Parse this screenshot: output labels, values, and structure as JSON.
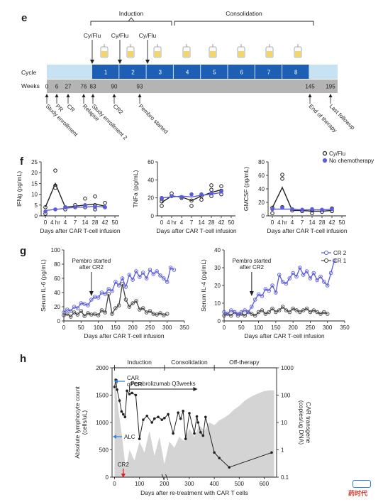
{
  "panel_e": {
    "label": "e",
    "phases": [
      "Induction",
      "Consolidation"
    ],
    "cyflu": [
      "Cy/Flu",
      "Cy/Flu",
      "Cy/Flu"
    ],
    "row_cycle": "Cycle",
    "row_weeks": "Weeks",
    "cycles": [
      "1",
      "2",
      "3",
      "4",
      "5",
      "6",
      "7",
      "8"
    ],
    "weeks": [
      "0",
      "6",
      "27",
      "76",
      "83",
      "90",
      "93",
      "145",
      "195"
    ],
    "events": [
      "Study enrollment",
      "PR",
      "CR",
      "Relapse",
      "Study enrollment 2",
      "CR2",
      "Pembro started",
      "End of therapy",
      "Last followup"
    ],
    "colors": {
      "cycle_bar": "#1d5fb4",
      "cycle_light": "#c7e3f3",
      "weeks_bar": "#b4b4b4"
    }
  },
  "panel_f": {
    "label": "f",
    "xlabel": "Days after CAR T-cell infusion"
  },
  "panel_g": {
    "label": "g",
    "xlabel": "Days after CAR T-cell infusion",
    "annotation": [
      "Pembro started",
      "after CR2"
    ]
  },
  "panel_h": {
    "label": "h",
    "phases": [
      "Induction",
      "Consolidation",
      "Off-therapy"
    ],
    "ylabel_left": [
      "Absolute lymphocyte count",
      "(cells/uL)"
    ],
    "ylabel_right": [
      "CAR transgene",
      "(copies/ug DNA)"
    ],
    "xlabel": "Days after re-treatment with CAR T cells",
    "car_label": [
      "CAR",
      "qPCR"
    ],
    "alc_label": "ALC",
    "cr2_label": "CR2",
    "pembro_label": "Pembrolizumab Q3weeks",
    "colors": {
      "pcr_fill": "#d4d4d4",
      "arrow_blue": "#3a7fd5",
      "arrow_red": "#e02020"
    }
  },
  "watermark": {
    "text": "药时代"
  },
  "chart_data": [
    {
      "type": "line",
      "title": "",
      "xlabel": "Days after CAR T-cell infusion",
      "ylabel": "IFNg (pg/mL)",
      "x_categories": [
        "0",
        "4 hr",
        "4",
        "7",
        "14",
        "28",
        "42",
        "50"
      ],
      "ylim": [
        0,
        25
      ],
      "yticks": [
        0,
        5,
        10,
        15,
        20,
        25
      ],
      "series": [
        {
          "name": "Cy/Flu",
          "color": "#222222",
          "points": [
            [
              0,
              4
            ],
            [
              1,
              15
            ],
            [
              2,
              4
            ],
            [
              3,
              4.5
            ],
            [
              4,
              5
            ],
            [
              5,
              5.5
            ],
            [
              6,
              4.5
            ]
          ],
          "scatter": [
            [
              0,
              1
            ],
            [
              0,
              4
            ],
            [
              1,
              21
            ],
            [
              1,
              14
            ],
            [
              1,
              13
            ],
            [
              2,
              3
            ],
            [
              2,
              4
            ],
            [
              3,
              4
            ],
            [
              3,
              5
            ],
            [
              4,
              8
            ],
            [
              4,
              4
            ],
            [
              5,
              9
            ],
            [
              5,
              3
            ],
            [
              5,
              5
            ],
            [
              6,
              6
            ],
            [
              6,
              4
            ]
          ]
        },
        {
          "name": "No chemotherapy",
          "color": "#5b5bdc",
          "points": [
            [
              0,
              2.5
            ],
            [
              1,
              3
            ],
            [
              2,
              3.5
            ],
            [
              3,
              4
            ],
            [
              4,
              4
            ],
            [
              5,
              4.5
            ],
            [
              6,
              4
            ]
          ],
          "scatter": [
            [
              0,
              2
            ],
            [
              1,
              3
            ],
            [
              2,
              4
            ],
            [
              3,
              4
            ],
            [
              4,
              5
            ],
            [
              5,
              4
            ],
            [
              6,
              4
            ]
          ]
        }
      ]
    },
    {
      "type": "line",
      "title": "",
      "xlabel": "Days after CAR T-cell infusion",
      "ylabel": "TNFa (pg/mL)",
      "x_categories": [
        "0",
        "4 hr",
        "4",
        "7",
        "14",
        "28",
        "42",
        "50"
      ],
      "ylim": [
        0,
        60
      ],
      "yticks": [
        0,
        20,
        40,
        60
      ],
      "series": [
        {
          "name": "Cy/Flu",
          "color": "#222222",
          "points": [
            [
              0,
              15
            ],
            [
              1,
              22
            ],
            [
              2,
              21
            ],
            [
              3,
              17
            ],
            [
              4,
              22
            ],
            [
              5,
              26
            ],
            [
              6,
              29
            ]
          ],
          "scatter": [
            [
              0,
              11
            ],
            [
              0,
              16
            ],
            [
              0,
              19
            ],
            [
              1,
              22
            ],
            [
              1,
              25
            ],
            [
              2,
              20
            ],
            [
              3,
              11
            ],
            [
              3,
              17
            ],
            [
              4,
              22
            ],
            [
              4,
              18
            ],
            [
              5,
              29
            ],
            [
              5,
              22
            ],
            [
              5,
              34
            ],
            [
              6,
              28
            ],
            [
              6,
              33
            ],
            [
              6,
              24
            ]
          ]
        },
        {
          "name": "No chemotherapy",
          "color": "#5b5bdc",
          "points": [
            [
              0,
              20
            ],
            [
              1,
              21
            ],
            [
              2,
              22
            ],
            [
              3,
              21
            ],
            [
              4,
              23
            ],
            [
              5,
              24
            ],
            [
              6,
              26
            ]
          ],
          "scatter": [
            [
              0,
              20
            ],
            [
              1,
              22
            ],
            [
              2,
              21
            ],
            [
              3,
              24
            ],
            [
              4,
              24
            ],
            [
              5,
              25
            ],
            [
              6,
              27
            ]
          ]
        }
      ]
    },
    {
      "type": "line",
      "title": "",
      "xlabel": "Days after CAR T-cell infusion",
      "ylabel": "GMCSF (pg/mL)",
      "x_categories": [
        "0",
        "4 hr",
        "4",
        "7",
        "14",
        "28",
        "42",
        "50"
      ],
      "ylim": [
        0,
        80
      ],
      "yticks": [
        0,
        20,
        40,
        60,
        80
      ],
      "legend": [
        "Cy/Flu",
        "No chemotherapy"
      ],
      "legend_position": "top-right",
      "series": [
        {
          "name": "Cy/Flu",
          "color": "#222222",
          "points": [
            [
              0,
              12
            ],
            [
              1,
              42
            ],
            [
              2,
              8
            ],
            [
              3,
              8
            ],
            [
              4,
              7
            ],
            [
              5,
              7
            ],
            [
              6,
              8
            ]
          ],
          "scatter": [
            [
              0,
              4
            ],
            [
              0,
              12
            ],
            [
              1,
              61
            ],
            [
              1,
              55
            ],
            [
              1,
              13
            ],
            [
              2,
              8
            ],
            [
              3,
              7
            ],
            [
              3,
              9
            ],
            [
              4,
              4
            ],
            [
              4,
              8
            ],
            [
              5,
              6
            ],
            [
              5,
              9
            ],
            [
              6,
              7
            ],
            [
              6,
              11
            ]
          ]
        },
        {
          "name": "No chemotherapy",
          "color": "#5b5bdc",
          "points": [
            [
              0,
              10
            ],
            [
              1,
              10
            ],
            [
              2,
              10
            ],
            [
              3,
              9
            ],
            [
              4,
              9
            ],
            [
              5,
              9
            ],
            [
              6,
              10
            ]
          ],
          "scatter": [
            [
              0,
              10
            ],
            [
              1,
              12
            ],
            [
              2,
              10
            ],
            [
              3,
              9
            ],
            [
              4,
              10
            ],
            [
              5,
              9
            ],
            [
              6,
              10
            ]
          ]
        }
      ]
    },
    {
      "type": "line",
      "title": "",
      "xlabel": "Days after CAR T-cell infusion",
      "ylabel": "Serum IL-6 (pg/mL)",
      "xlim": [
        0,
        350
      ],
      "xticks": [
        0,
        50,
        100,
        150,
        200,
        250,
        300,
        350
      ],
      "ylim": [
        0,
        100
      ],
      "yticks": [
        0,
        20,
        40,
        60,
        80,
        100
      ],
      "series": [
        {
          "name": "CR 2",
          "color": "#5b5bdc",
          "x": [
            0,
            10,
            20,
            30,
            40,
            50,
            60,
            70,
            80,
            90,
            100,
            110,
            120,
            130,
            140,
            150,
            160,
            170,
            180,
            190,
            200,
            210,
            220,
            230,
            240,
            250,
            260,
            270,
            280,
            290,
            300,
            310,
            320
          ],
          "y": [
            12,
            16,
            14,
            20,
            18,
            25,
            24,
            22,
            30,
            34,
            33,
            40,
            38,
            45,
            42,
            55,
            50,
            60,
            48,
            65,
            58,
            70,
            62,
            68,
            60,
            72,
            66,
            70,
            64,
            60,
            55,
            75,
            72
          ]
        },
        {
          "name": "CR 1",
          "color": "#444444",
          "x": [
            0,
            10,
            20,
            30,
            40,
            50,
            60,
            70,
            80,
            90,
            100,
            110,
            120,
            130,
            140,
            150,
            160,
            170,
            180,
            190,
            200,
            210,
            220,
            230,
            240,
            250,
            260,
            270,
            280,
            290,
            300
          ],
          "y": [
            8,
            10,
            6,
            12,
            9,
            14,
            7,
            11,
            9,
            10,
            8,
            15,
            12,
            38,
            10,
            18,
            22,
            52,
            30,
            20,
            25,
            28,
            16,
            18,
            12,
            14,
            10,
            9,
            11,
            8,
            10
          ]
        }
      ]
    },
    {
      "type": "line",
      "title": "",
      "xlabel": "Days after CAR T-cell infusion",
      "ylabel": "Serum IL-4 (pg/mL)",
      "xlim": [
        0,
        350
      ],
      "xticks": [
        0,
        50,
        100,
        150,
        200,
        250,
        300,
        350
      ],
      "ylim": [
        0,
        40
      ],
      "yticks": [
        0,
        10,
        20,
        30,
        40
      ],
      "legend": [
        "CR 2",
        "CR 1"
      ],
      "legend_position": "top-right",
      "series": [
        {
          "name": "CR 2",
          "color": "#5b5bdc",
          "x": [
            0,
            10,
            20,
            30,
            40,
            50,
            60,
            70,
            80,
            90,
            100,
            110,
            120,
            130,
            140,
            150,
            160,
            170,
            180,
            190,
            200,
            210,
            220,
            230,
            240,
            250,
            260,
            270,
            280,
            290,
            300,
            310,
            320
          ],
          "y": [
            5,
            4,
            6,
            5,
            4,
            5,
            6,
            5,
            8,
            12,
            15,
            14,
            18,
            17,
            20,
            16,
            26,
            22,
            21,
            24,
            27,
            25,
            30,
            26,
            28,
            24,
            27,
            23,
            25,
            22,
            20,
            27,
            34
          ]
        },
        {
          "name": "CR 1",
          "color": "#444444",
          "x": [
            0,
            10,
            20,
            30,
            40,
            50,
            60,
            70,
            80,
            90,
            100,
            110,
            120,
            130,
            140,
            150,
            160,
            170,
            180,
            190,
            200,
            210,
            220,
            230,
            240,
            250,
            260,
            270,
            280,
            290,
            300
          ],
          "y": [
            3,
            4,
            3,
            5,
            3,
            4,
            3,
            5,
            4,
            3,
            5,
            6,
            4,
            5,
            7,
            5,
            6,
            8,
            6,
            5,
            7,
            6,
            5,
            6,
            7,
            5,
            6,
            5,
            4,
            5,
            4
          ]
        }
      ]
    },
    {
      "type": "line",
      "title": "",
      "xlabel": "Days after re-treatment with CAR T cells",
      "ylabel": "Absolute lymphocyte count (cells/uL)",
      "ylabel_right": "CAR transgene (copies/ug DNA)",
      "xlim": [
        -10,
        650
      ],
      "xticks": [
        0,
        100,
        200,
        300,
        400,
        500,
        600
      ],
      "ylim": [
        0,
        2000
      ],
      "yticks": [
        0,
        500,
        1000,
        1500,
        2000
      ],
      "ylim_right": [
        0.1,
        1000
      ],
      "yticks_right": [
        0.1,
        1,
        10,
        100,
        1000
      ],
      "yscale_right": "log",
      "series": [
        {
          "name": "ALC",
          "color": "#222222",
          "x": [
            0,
            5,
            10,
            20,
            28,
            35,
            42,
            50,
            60,
            70,
            85,
            100,
            115,
            130,
            150,
            160,
            175,
            190,
            200,
            215,
            235,
            255,
            265,
            275,
            285,
            300,
            320,
            330,
            335,
            345,
            355,
            365,
            400,
            420,
            460,
            630
          ],
          "y": [
            1650,
            1780,
            1600,
            1400,
            1200,
            1150,
            1100,
            1580,
            1520,
            1540,
            1500,
            700,
            1050,
            1120,
            1000,
            1070,
            1100,
            1050,
            1080,
            1150,
            800,
            1180,
            1070,
            1210,
            700,
            1170,
            800,
            1110,
            1000,
            820,
            760,
            1100,
            450,
            350,
            180,
            450
          ]
        },
        {
          "name": "CAR qPCR",
          "color": "#d4d4d4",
          "style": "filled-area",
          "x": [
            0,
            15,
            30,
            45,
            60,
            80,
            100,
            120,
            140,
            160,
            180,
            200,
            220,
            240,
            260,
            280,
            300,
            320,
            340,
            360,
            380,
            400,
            420,
            440,
            460,
            480,
            500,
            520,
            540,
            560,
            580,
            600,
            620,
            640
          ],
          "y": [
            500,
            30,
            3,
            0.2,
            1,
            0.4,
            2,
            0.8,
            5,
            0.6,
            3,
            0.3,
            2,
            1.2,
            3,
            2,
            6,
            3,
            8,
            5,
            10,
            8,
            12,
            15,
            20,
            30,
            40,
            60,
            80,
            100,
            120,
            140,
            150,
            150
          ]
        }
      ]
    }
  ]
}
